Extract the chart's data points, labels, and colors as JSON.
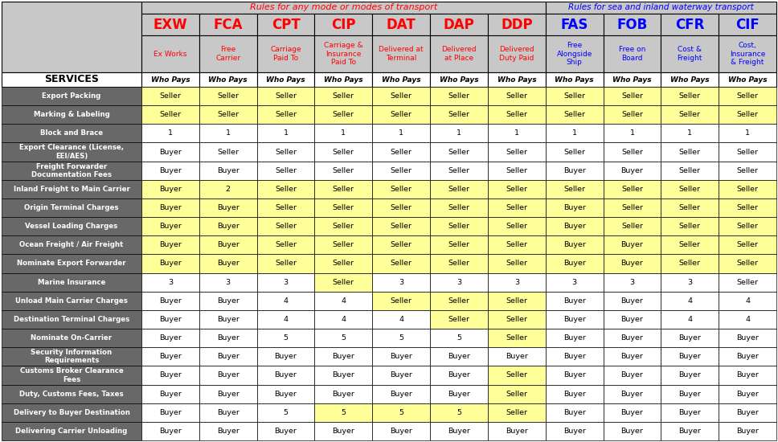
{
  "title_any": "Rules for any mode or modes of transport",
  "title_sea": "Rules for sea and inland waterway transport",
  "title_any_color": "#FF0000",
  "title_sea_color": "#0000FF",
  "services_label": "SERVICES",
  "col_headers": [
    "EXW",
    "FCA",
    "CPT",
    "CIP",
    "DAT",
    "DAP",
    "DDP",
    "FAS",
    "FOB",
    "CFR",
    "CIF"
  ],
  "col_subtitles": [
    "Ex Works",
    "Free\nCarrier",
    "Carriage\nPaid To",
    "Carriage &\nInsurance\nPaid To",
    "Delivered at\nTerminal",
    "Delivered\nat Place",
    "Delivered\nDuty Paid",
    "Free\nAlongside\nShip",
    "Free on\nBoard",
    "Cost &\nFreight",
    "Cost,\nInsurance\n& Freight"
  ],
  "col_header_colors": [
    "#FF0000",
    "#FF0000",
    "#FF0000",
    "#FF0000",
    "#FF0000",
    "#FF0000",
    "#FF0000",
    "#0000FF",
    "#0000FF",
    "#0000FF",
    "#0000FF"
  ],
  "who_pays_label": "Who Pays",
  "row_labels": [
    "Export Packing",
    "Marking & Labeling",
    "Block and Brace",
    "Export Clearance (License,\nEEI/AES)",
    "Freight Forwarder\nDocumentation Fees",
    "Inland Freight to Main Carrier",
    "Origin Terminal Charges",
    "Vessel Loading Charges",
    "Ocean Freight / Air Freight",
    "Nominate Export Forwarder",
    "Marine Insurance",
    "Unload Main Carrier Charges",
    "Destination Terminal Charges",
    "Nominate On-Carrier",
    "Security Information\nRequirements",
    "Customs Broker Clearance\nFees",
    "Duty, Customs Fees, Taxes",
    "Delivery to Buyer Destination",
    "Delivering Carrier Unloading"
  ],
  "data": [
    [
      "Seller",
      "Seller",
      "Seller",
      "Seller",
      "Seller",
      "Seller",
      "Seller",
      "Seller",
      "Seller",
      "Seller",
      "Seller"
    ],
    [
      "Seller",
      "Seller",
      "Seller",
      "Seller",
      "Seller",
      "Seller",
      "Seller",
      "Seller",
      "Seller",
      "Seller",
      "Seller"
    ],
    [
      "1",
      "1",
      "1",
      "1",
      "1",
      "1",
      "1",
      "1",
      "1",
      "1",
      "1"
    ],
    [
      "Buyer",
      "Seller",
      "Seller",
      "Seller",
      "Seller",
      "Seller",
      "Seller",
      "Seller",
      "Seller",
      "Seller",
      "Seller"
    ],
    [
      "Buyer",
      "Buyer",
      "Seller",
      "Seller",
      "Seller",
      "Seller",
      "Seller",
      "Buyer",
      "Buyer",
      "Seller",
      "Seller"
    ],
    [
      "Buyer",
      "2",
      "Seller",
      "Seller",
      "Seller",
      "Seller",
      "Seller",
      "Seller",
      "Seller",
      "Seller",
      "Seller"
    ],
    [
      "Buyer",
      "Buyer",
      "Seller",
      "Seller",
      "Seller",
      "Seller",
      "Seller",
      "Buyer",
      "Seller",
      "Seller",
      "Seller"
    ],
    [
      "Buyer",
      "Buyer",
      "Seller",
      "Seller",
      "Seller",
      "Seller",
      "Seller",
      "Buyer",
      "Seller",
      "Seller",
      "Seller"
    ],
    [
      "Buyer",
      "Buyer",
      "Seller",
      "Seller",
      "Seller",
      "Seller",
      "Seller",
      "Buyer",
      "Buyer",
      "Seller",
      "Seller"
    ],
    [
      "Buyer",
      "Buyer",
      "Seller",
      "Seller",
      "Seller",
      "Seller",
      "Seller",
      "Buyer",
      "Buyer",
      "Seller",
      "Seller"
    ],
    [
      "3",
      "3",
      "3",
      "Seller",
      "3",
      "3",
      "3",
      "3",
      "3",
      "3",
      "Seller"
    ],
    [
      "Buyer",
      "Buyer",
      "4",
      "4",
      "Seller",
      "Seller",
      "Seller",
      "Buyer",
      "Buyer",
      "4",
      "4"
    ],
    [
      "Buyer",
      "Buyer",
      "4",
      "4",
      "4",
      "Seller",
      "Seller",
      "Buyer",
      "Buyer",
      "4",
      "4"
    ],
    [
      "Buyer",
      "Buyer",
      "5",
      "5",
      "5",
      "5",
      "Seller",
      "Buyer",
      "Buyer",
      "Buyer",
      "Buyer"
    ],
    [
      "Buyer",
      "Buyer",
      "Buyer",
      "Buyer",
      "Buyer",
      "Buyer",
      "Buyer",
      "Buyer",
      "Buyer",
      "Buyer",
      "Buyer"
    ],
    [
      "Buyer",
      "Buyer",
      "Buyer",
      "Buyer",
      "Buyer",
      "Buyer",
      "Seller",
      "Buyer",
      "Buyer",
      "Buyer",
      "Buyer"
    ],
    [
      "Buyer",
      "Buyer",
      "Buyer",
      "Buyer",
      "Buyer",
      "Buyer",
      "Seller",
      "Buyer",
      "Buyer",
      "Buyer",
      "Buyer"
    ],
    [
      "Buyer",
      "Buyer",
      "5",
      "5",
      "5",
      "5",
      "Seller",
      "Buyer",
      "Buyer",
      "Buyer",
      "Buyer"
    ],
    [
      "Buyer",
      "Buyer",
      "Buyer",
      "Buyer",
      "Buyer",
      "Buyer",
      "Buyer",
      "Buyer",
      "Buyer",
      "Buyer",
      "Buyer"
    ]
  ],
  "bg_dark": "#686868",
  "bg_light_gray": "#C8C8C8",
  "bg_yellow": "#FFFF99",
  "bg_white": "#FFFFFF",
  "text_white": "#FFFFFF",
  "text_black": "#000000",
  "any_cols": 7,
  "sea_cols": 4,
  "yellow_rows": [
    0,
    1,
    2,
    5,
    6,
    7,
    8,
    9,
    11,
    12,
    17
  ]
}
